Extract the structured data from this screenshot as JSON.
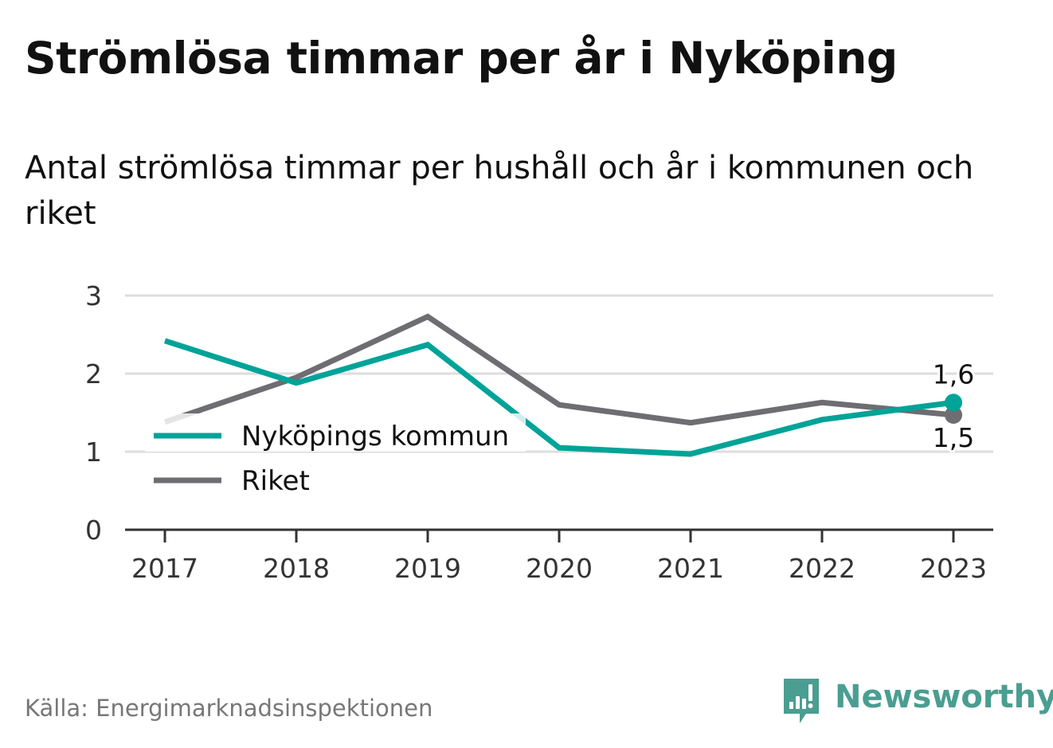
{
  "title": "Strömlösa timmar per år i Nyköping",
  "subtitle": "Antal strömlösa timmar per hushåll och år i kommunen och riket",
  "source": "Källa: Energimarknadsinspektionen",
  "brand": {
    "name": "Newsworthy",
    "color": "#4a9e91",
    "icon": "newsworthy-logo-icon"
  },
  "colors": {
    "kommun": "#00a398",
    "riket": "#6e6d72",
    "grid": "#dddddd",
    "axis": "#333333",
    "text": "#111111",
    "muted": "#777777"
  },
  "chart_data": {
    "type": "line",
    "x": [
      "2017",
      "2018",
      "2019",
      "2020",
      "2021",
      "2022",
      "2023"
    ],
    "series": [
      {
        "name": "Nyköpings kommun",
        "color": "#00a398",
        "values": [
          2.42,
          1.88,
          2.37,
          1.05,
          0.97,
          1.41,
          1.63
        ],
        "end_label": "1,6"
      },
      {
        "name": "Riket",
        "color": "#6e6d72",
        "values": [
          1.38,
          1.95,
          2.73,
          1.6,
          1.37,
          1.63,
          1.47
        ],
        "end_label": "1,5"
      }
    ],
    "yticks": [
      "0",
      "1",
      "2",
      "3"
    ],
    "ylim": [
      0,
      3
    ],
    "grid": true,
    "legend_position": "bottom-left"
  }
}
